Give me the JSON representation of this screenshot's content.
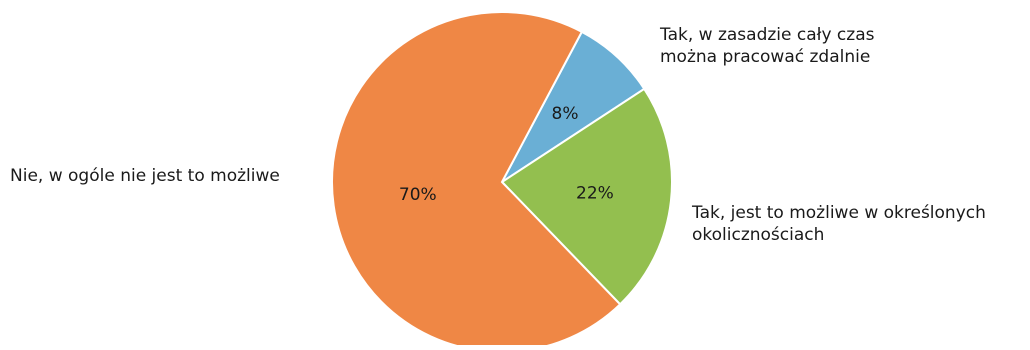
{
  "chart_data": {
    "type": "pie",
    "title": "",
    "slices": [
      {
        "label": "Tak, w zasadzie cały czas\nmożna pracować zdalnie",
        "value": 8,
        "value_label": "8%",
        "color": "#6aafd5"
      },
      {
        "label": "Tak, jest to możliwe w określonych\nokolicznościach",
        "value": 22,
        "value_label": "22%",
        "color": "#93bf4f"
      },
      {
        "label": "Nie, w ogóle nie jest to możliwe",
        "value": 70,
        "value_label": "70%",
        "color": "#ef8745"
      }
    ],
    "start_angle_deg": 28,
    "direction": "clockwise",
    "legend": "none (labels outside slices)"
  }
}
